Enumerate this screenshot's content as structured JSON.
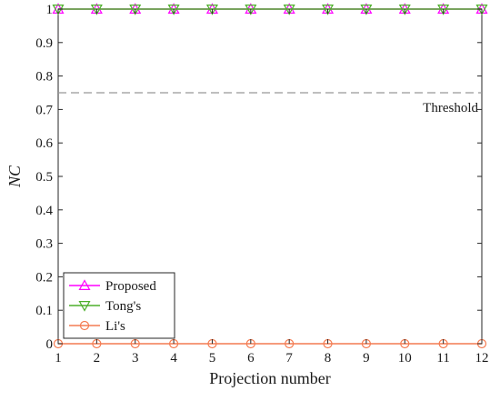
{
  "chart_data": {
    "type": "line",
    "title": "",
    "xlabel": "Projection number",
    "ylabel": "NC",
    "x": [
      1,
      2,
      3,
      4,
      5,
      6,
      7,
      8,
      9,
      10,
      11,
      12
    ],
    "xlim": [
      1,
      12
    ],
    "ylim": [
      0,
      1
    ],
    "xticks": [
      1,
      2,
      3,
      4,
      5,
      6,
      7,
      8,
      9,
      10,
      11,
      12
    ],
    "yticks": [
      0,
      0.1,
      0.2,
      0.3,
      0.4,
      0.5,
      0.6,
      0.7,
      0.8,
      0.9,
      1
    ],
    "grid": false,
    "legend_position": "bottom-left",
    "series": [
      {
        "name": "Proposed",
        "color": "#ff00ff",
        "marker": "triangle-up",
        "values": [
          1,
          1,
          1,
          1,
          1,
          1,
          1,
          1,
          1,
          1,
          1,
          1
        ]
      },
      {
        "name": "Tong's",
        "color": "#4daf2a",
        "marker": "triangle-down",
        "values": [
          1,
          1,
          1,
          1,
          1,
          1,
          1,
          1,
          1,
          1,
          1,
          1
        ]
      },
      {
        "name": "Li's",
        "color": "#f47c52",
        "marker": "circle",
        "values": [
          0,
          0,
          0,
          0,
          0,
          0,
          0,
          0,
          0,
          0,
          0,
          0
        ]
      }
    ],
    "threshold": {
      "label": "Threshold",
      "value": 0.75,
      "color": "#999999",
      "style": "dashed"
    }
  }
}
